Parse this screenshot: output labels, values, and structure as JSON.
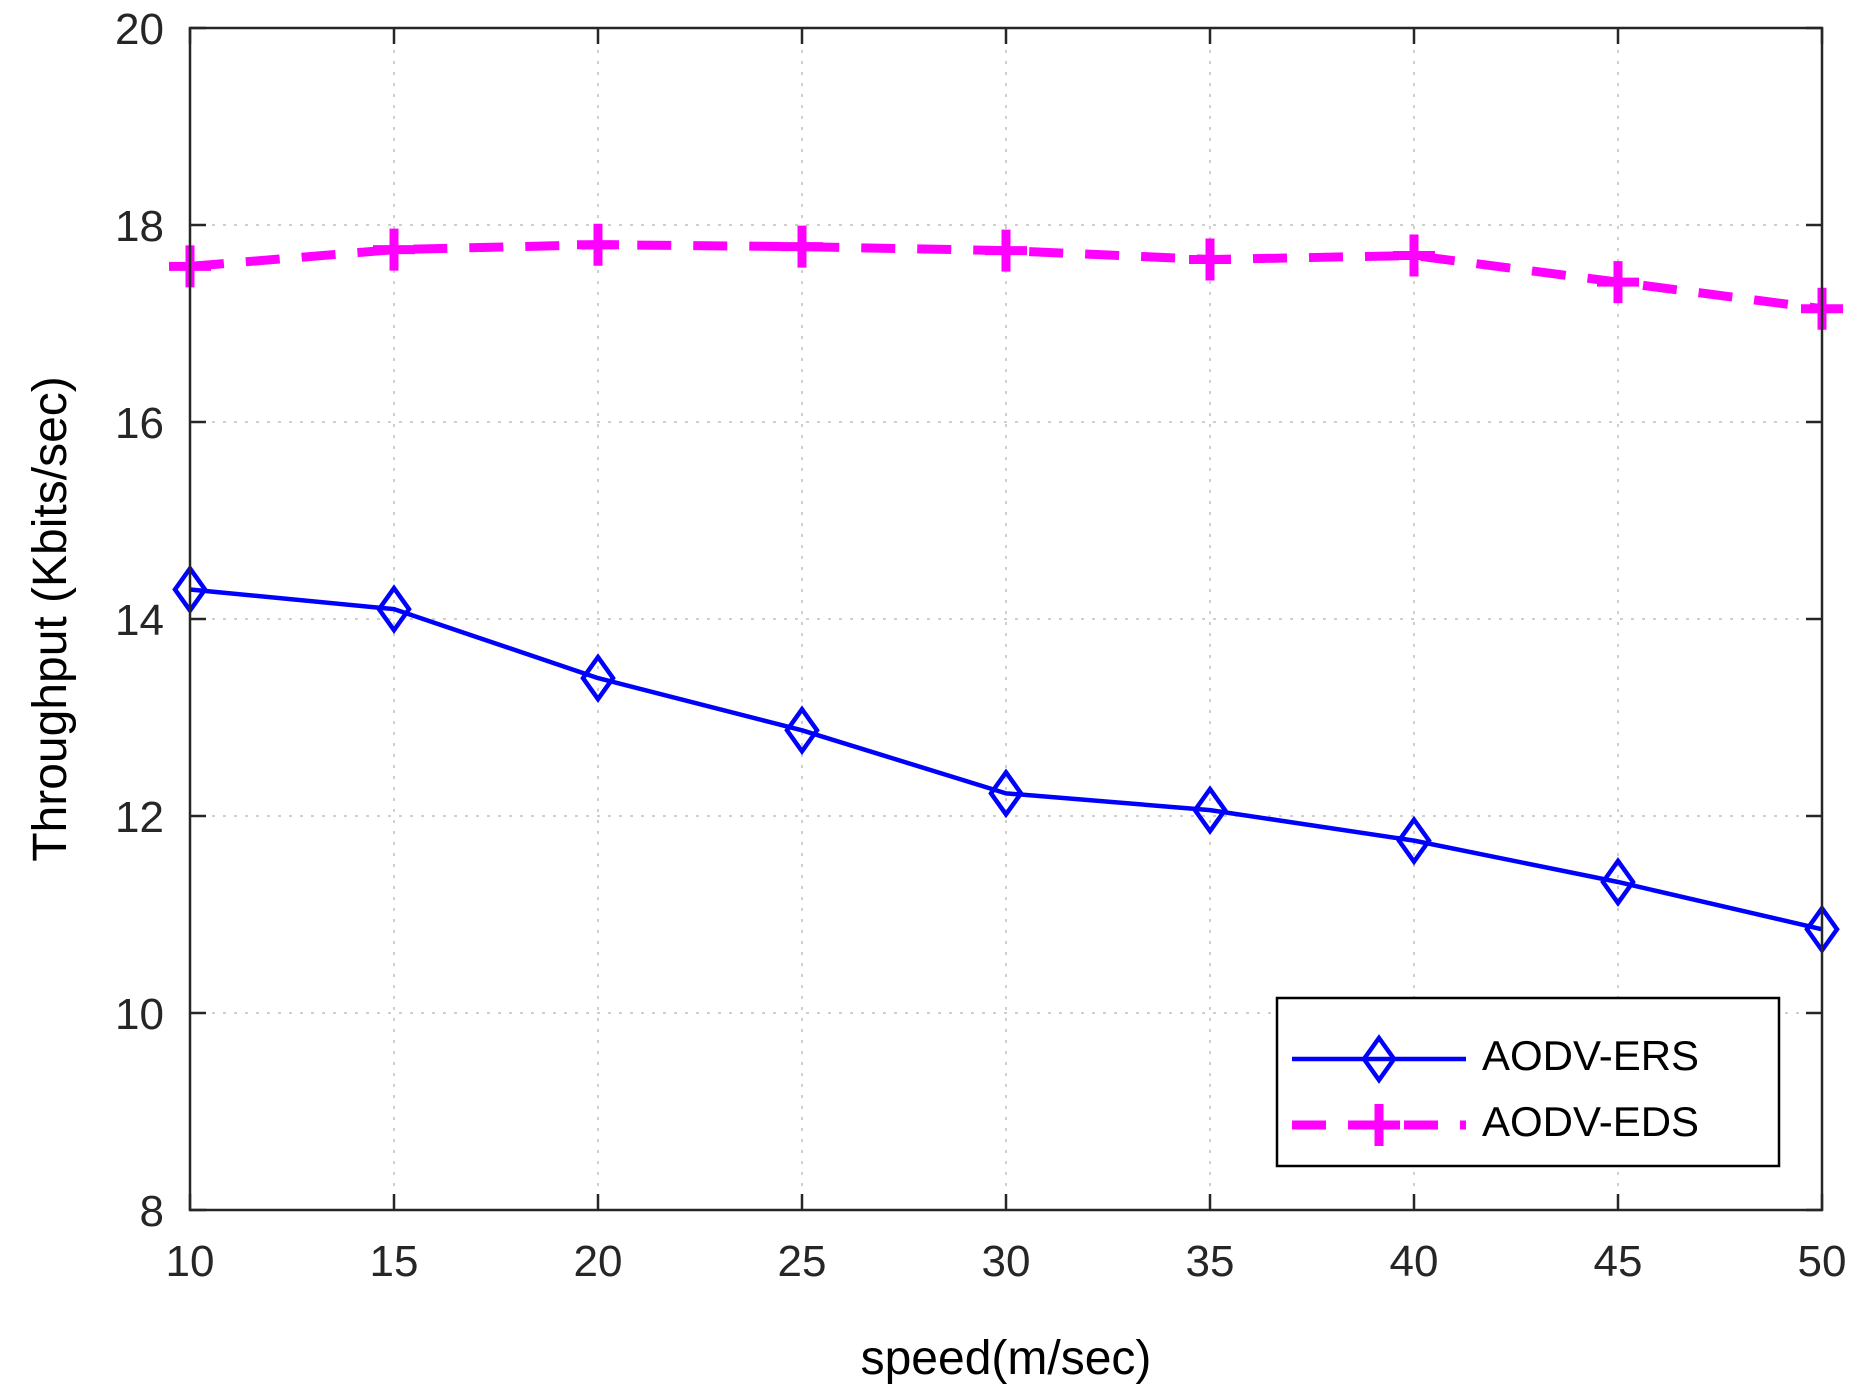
{
  "chart_data": {
    "type": "line",
    "title": "",
    "xlabel": "speed(m/sec)",
    "ylabel": "Throughput (Kbits/sec)",
    "xlim": [
      10,
      50
    ],
    "ylim": [
      8,
      20
    ],
    "x_ticks": [
      10,
      15,
      20,
      25,
      30,
      35,
      40,
      45,
      50
    ],
    "y_ticks": [
      8,
      10,
      12,
      14,
      16,
      18,
      20
    ],
    "grid": true,
    "legend_location": "bottom-right",
    "x": [
      10,
      15,
      20,
      25,
      30,
      35,
      40,
      45,
      50
    ],
    "series": [
      {
        "name": "AODV-ERS",
        "color": "#0000ff",
        "line_style": "solid",
        "marker": "diamond",
        "values": [
          14.3,
          14.1,
          13.4,
          12.87,
          12.23,
          12.06,
          11.75,
          11.33,
          10.85
        ]
      },
      {
        "name": "AODV-EDS",
        "color": "#ff00ff",
        "line_style": "dashed",
        "marker": "plus",
        "values": [
          17.58,
          17.75,
          17.8,
          17.78,
          17.74,
          17.65,
          17.69,
          17.42,
          17.15
        ]
      }
    ]
  }
}
